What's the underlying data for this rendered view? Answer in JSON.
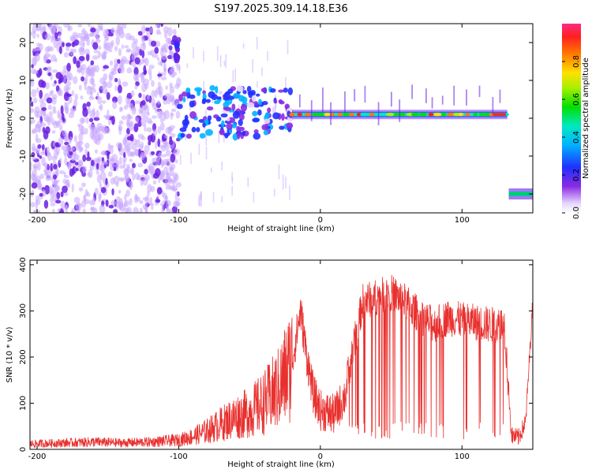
{
  "title": "S197.2025.309.14.18.E36",
  "colors": {
    "series": "#e8302e",
    "scatter_light": "#c9a8ff",
    "scatter_dark": "#6a1fe0",
    "ridge_hot": "#e8302e",
    "ridge_mid": "#29e0b0"
  },
  "chart_data": [
    {
      "type": "heatmap",
      "id": "spectrogram",
      "xlabel": "Height of straight line (km)",
      "ylabel": "Frequency (Hz)",
      "xlim": [
        -205,
        150
      ],
      "ylim": [
        -25,
        25
      ],
      "xticks": [
        -200,
        -100,
        0,
        100
      ],
      "yticks": [
        -20,
        -10,
        0,
        10,
        20
      ],
      "colorbar": {
        "label": "Normalized spectral amplitude",
        "range": [
          0,
          1
        ],
        "ticks": [
          0.0,
          0.2,
          0.4,
          0.6,
          0.8
        ],
        "tick_labels": [
          "0.0",
          "0.2",
          "0.4",
          "0.6",
          "0.8"
        ]
      },
      "features": [
        {
          "name": "broadband noise",
          "x_range": [
            -205,
            -100
          ],
          "freq_range": [
            -25,
            25
          ],
          "amplitude": 0.15
        },
        {
          "name": "noise burst",
          "x": -100,
          "freq_range": [
            15,
            20
          ],
          "amplitude": 0.2
        },
        {
          "name": "transition",
          "x_range": [
            -100,
            -20
          ],
          "freq_range": [
            -5,
            8
          ],
          "amplitude": 0.35
        },
        {
          "name": "carrier line",
          "x_range": [
            -20,
            132
          ],
          "freq": 1.0,
          "amplitude": 0.9
        },
        {
          "name": "shifted carrier",
          "x_range": [
            133,
            150
          ],
          "freq": -20,
          "amplitude": 0.5
        }
      ]
    },
    {
      "type": "line",
      "id": "snr",
      "xlabel": "Height of straight line (km)",
      "ylabel": "SNR (10 * v/v)",
      "xlim": [
        -205,
        150
      ],
      "ylim": [
        0,
        410
      ],
      "xticks": [
        -200,
        -100,
        0,
        100
      ],
      "yticks": [
        0,
        100,
        200,
        300,
        400
      ],
      "series": [
        {
          "name": "SNR",
          "x": [
            -205,
            -180,
            -160,
            -140,
            -120,
            -100,
            -90,
            -80,
            -70,
            -60,
            -50,
            -40,
            -30,
            -20,
            -14,
            -10,
            -5,
            0,
            10,
            18,
            20,
            30,
            40,
            50,
            60,
            70,
            75,
            80,
            90,
            100,
            110,
            120,
            130,
            135,
            140,
            145,
            150
          ],
          "values": [
            12,
            14,
            16,
            14,
            16,
            20,
            28,
            40,
            55,
            70,
            80,
            100,
            130,
            190,
            300,
            210,
            120,
            85,
            75,
            120,
            170,
            320,
            330,
            340,
            320,
            290,
            280,
            270,
            285,
            280,
            275,
            270,
            270,
            30,
            25,
            60,
            320
          ]
        }
      ]
    }
  ]
}
